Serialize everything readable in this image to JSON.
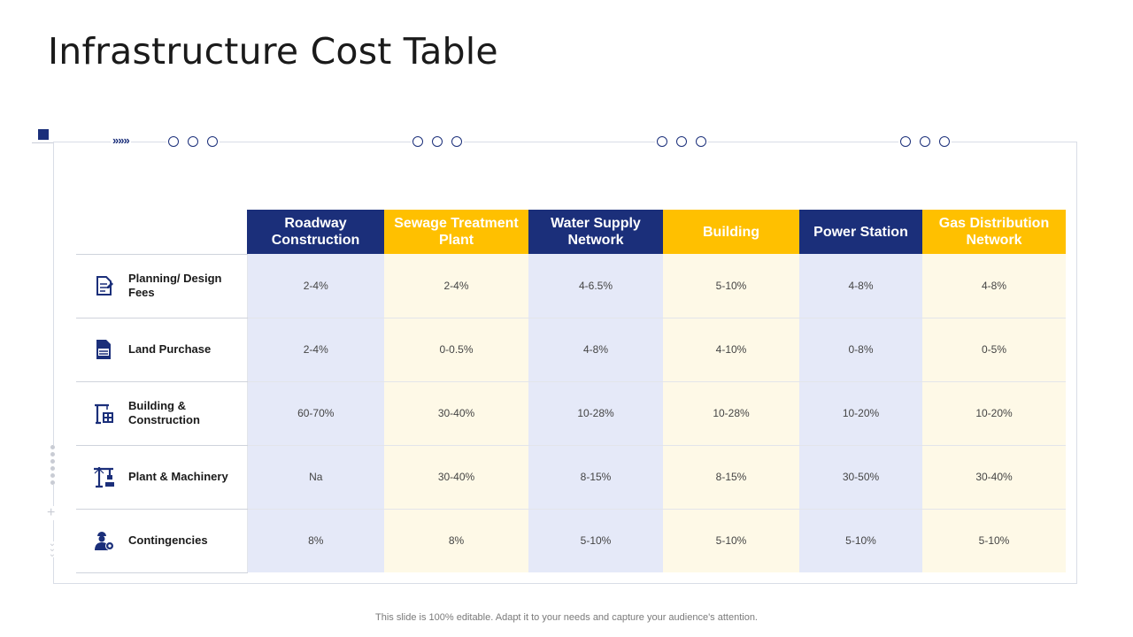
{
  "title": "Infrastructure Cost Table",
  "footer": "This slide is 100% editable. Adapt it to your needs and capture your audience's attention.",
  "colors": {
    "primary": "#1b2f7a",
    "accent": "#ffc000",
    "blue_tint": "#e5e9f8",
    "yellow_tint": "#fef9e7"
  },
  "table": {
    "columns": [
      {
        "label": "Roadway Construction",
        "style": "blue"
      },
      {
        "label": "Sewage Treatment Plant",
        "style": "yellow"
      },
      {
        "label": "Water Supply Network",
        "style": "blue"
      },
      {
        "label": "Building",
        "style": "yellow"
      },
      {
        "label": "Power Station",
        "style": "blue"
      },
      {
        "label": "Gas Distribution Network",
        "style": "yellow"
      }
    ],
    "rows": [
      {
        "label": "Planning/ Design Fees",
        "icon": "document-icon",
        "values": [
          "2-4%",
          "2-4%",
          "4-6.5%",
          "5-10%",
          "4-8%",
          "4-8%"
        ]
      },
      {
        "label": "Land Purchase",
        "icon": "file-icon",
        "values": [
          "2-4%",
          "0-0.5%",
          "4-8%",
          "4-10%",
          "0-8%",
          "0-5%"
        ]
      },
      {
        "label": "Building & Construction",
        "icon": "crane-building-icon",
        "values": [
          "60-70%",
          "30-40%",
          "10-28%",
          "10-28%",
          "10-20%",
          "10-20%"
        ]
      },
      {
        "label": "Plant & Machinery",
        "icon": "crane-icon",
        "values": [
          "Na",
          "30-40%",
          "8-15%",
          "8-15%",
          "30-50%",
          "30-40%"
        ]
      },
      {
        "label": "Contingencies",
        "icon": "worker-gear-icon",
        "values": [
          "8%",
          "8%",
          "5-10%",
          "5-10%",
          "5-10%",
          "5-10%"
        ]
      }
    ]
  }
}
